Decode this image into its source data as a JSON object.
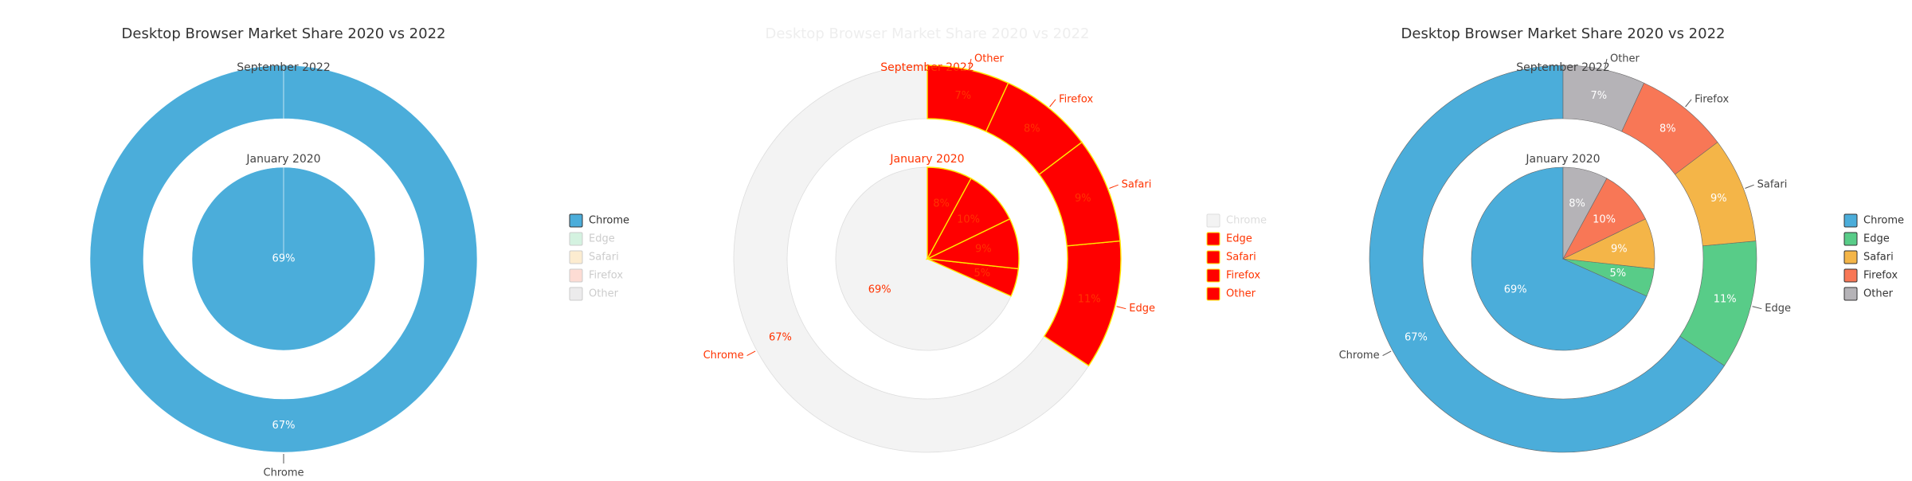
{
  "chart_data": [
    {
      "type": "pie",
      "variant": "nested-donut",
      "panel_state": "only-chrome-selected",
      "title": "Desktop Browser Market Share 2020 vs 2022",
      "categories": [
        "Chrome",
        "Edge",
        "Safari",
        "Firefox",
        "Other"
      ],
      "series": [
        {
          "name": "September 2022",
          "values": [
            67,
            11,
            9,
            8,
            7
          ]
        },
        {
          "name": "January 2020",
          "values": [
            69,
            5,
            9,
            10,
            8
          ]
        }
      ],
      "legend_placement": "right",
      "legend_visible": [
        true,
        false,
        false,
        false,
        false
      ]
    },
    {
      "type": "pie",
      "variant": "nested-donut",
      "panel_state": "highlight-overlay",
      "title": "Desktop Browser Market Share 2020 vs 2022",
      "categories": [
        "Chrome",
        "Edge",
        "Safari",
        "Firefox",
        "Other"
      ],
      "series": [
        {
          "name": "September 2022",
          "values": [
            67,
            11,
            9,
            8,
            7
          ]
        },
        {
          "name": "January 2020",
          "values": [
            69,
            5,
            9,
            10,
            8
          ]
        }
      ],
      "legend_placement": "right",
      "legend_visible": [
        false,
        true,
        true,
        true,
        true
      ]
    },
    {
      "type": "pie",
      "variant": "nested-donut",
      "panel_state": "full",
      "title": "Desktop Browser Market Share 2020 vs 2022",
      "categories": [
        "Chrome",
        "Edge",
        "Safari",
        "Firefox",
        "Other"
      ],
      "series": [
        {
          "name": "September 2022",
          "values": [
            67,
            11,
            9,
            8,
            7
          ]
        },
        {
          "name": "January 2020",
          "values": [
            69,
            5,
            9,
            10,
            8
          ]
        }
      ],
      "legend_placement": "right",
      "legend_visible": [
        true,
        true,
        true,
        true,
        true
      ]
    }
  ],
  "colors": {
    "Chrome": "#4badda",
    "Edge": "#58cc88",
    "Safari": "#f4b548",
    "Firefox": "#f87756",
    "Other": "#b5b3b7",
    "highlight_fill": "#ff0000",
    "highlight_stroke": "#ffe800",
    "unselected_fill": "#f3f3f3"
  }
}
